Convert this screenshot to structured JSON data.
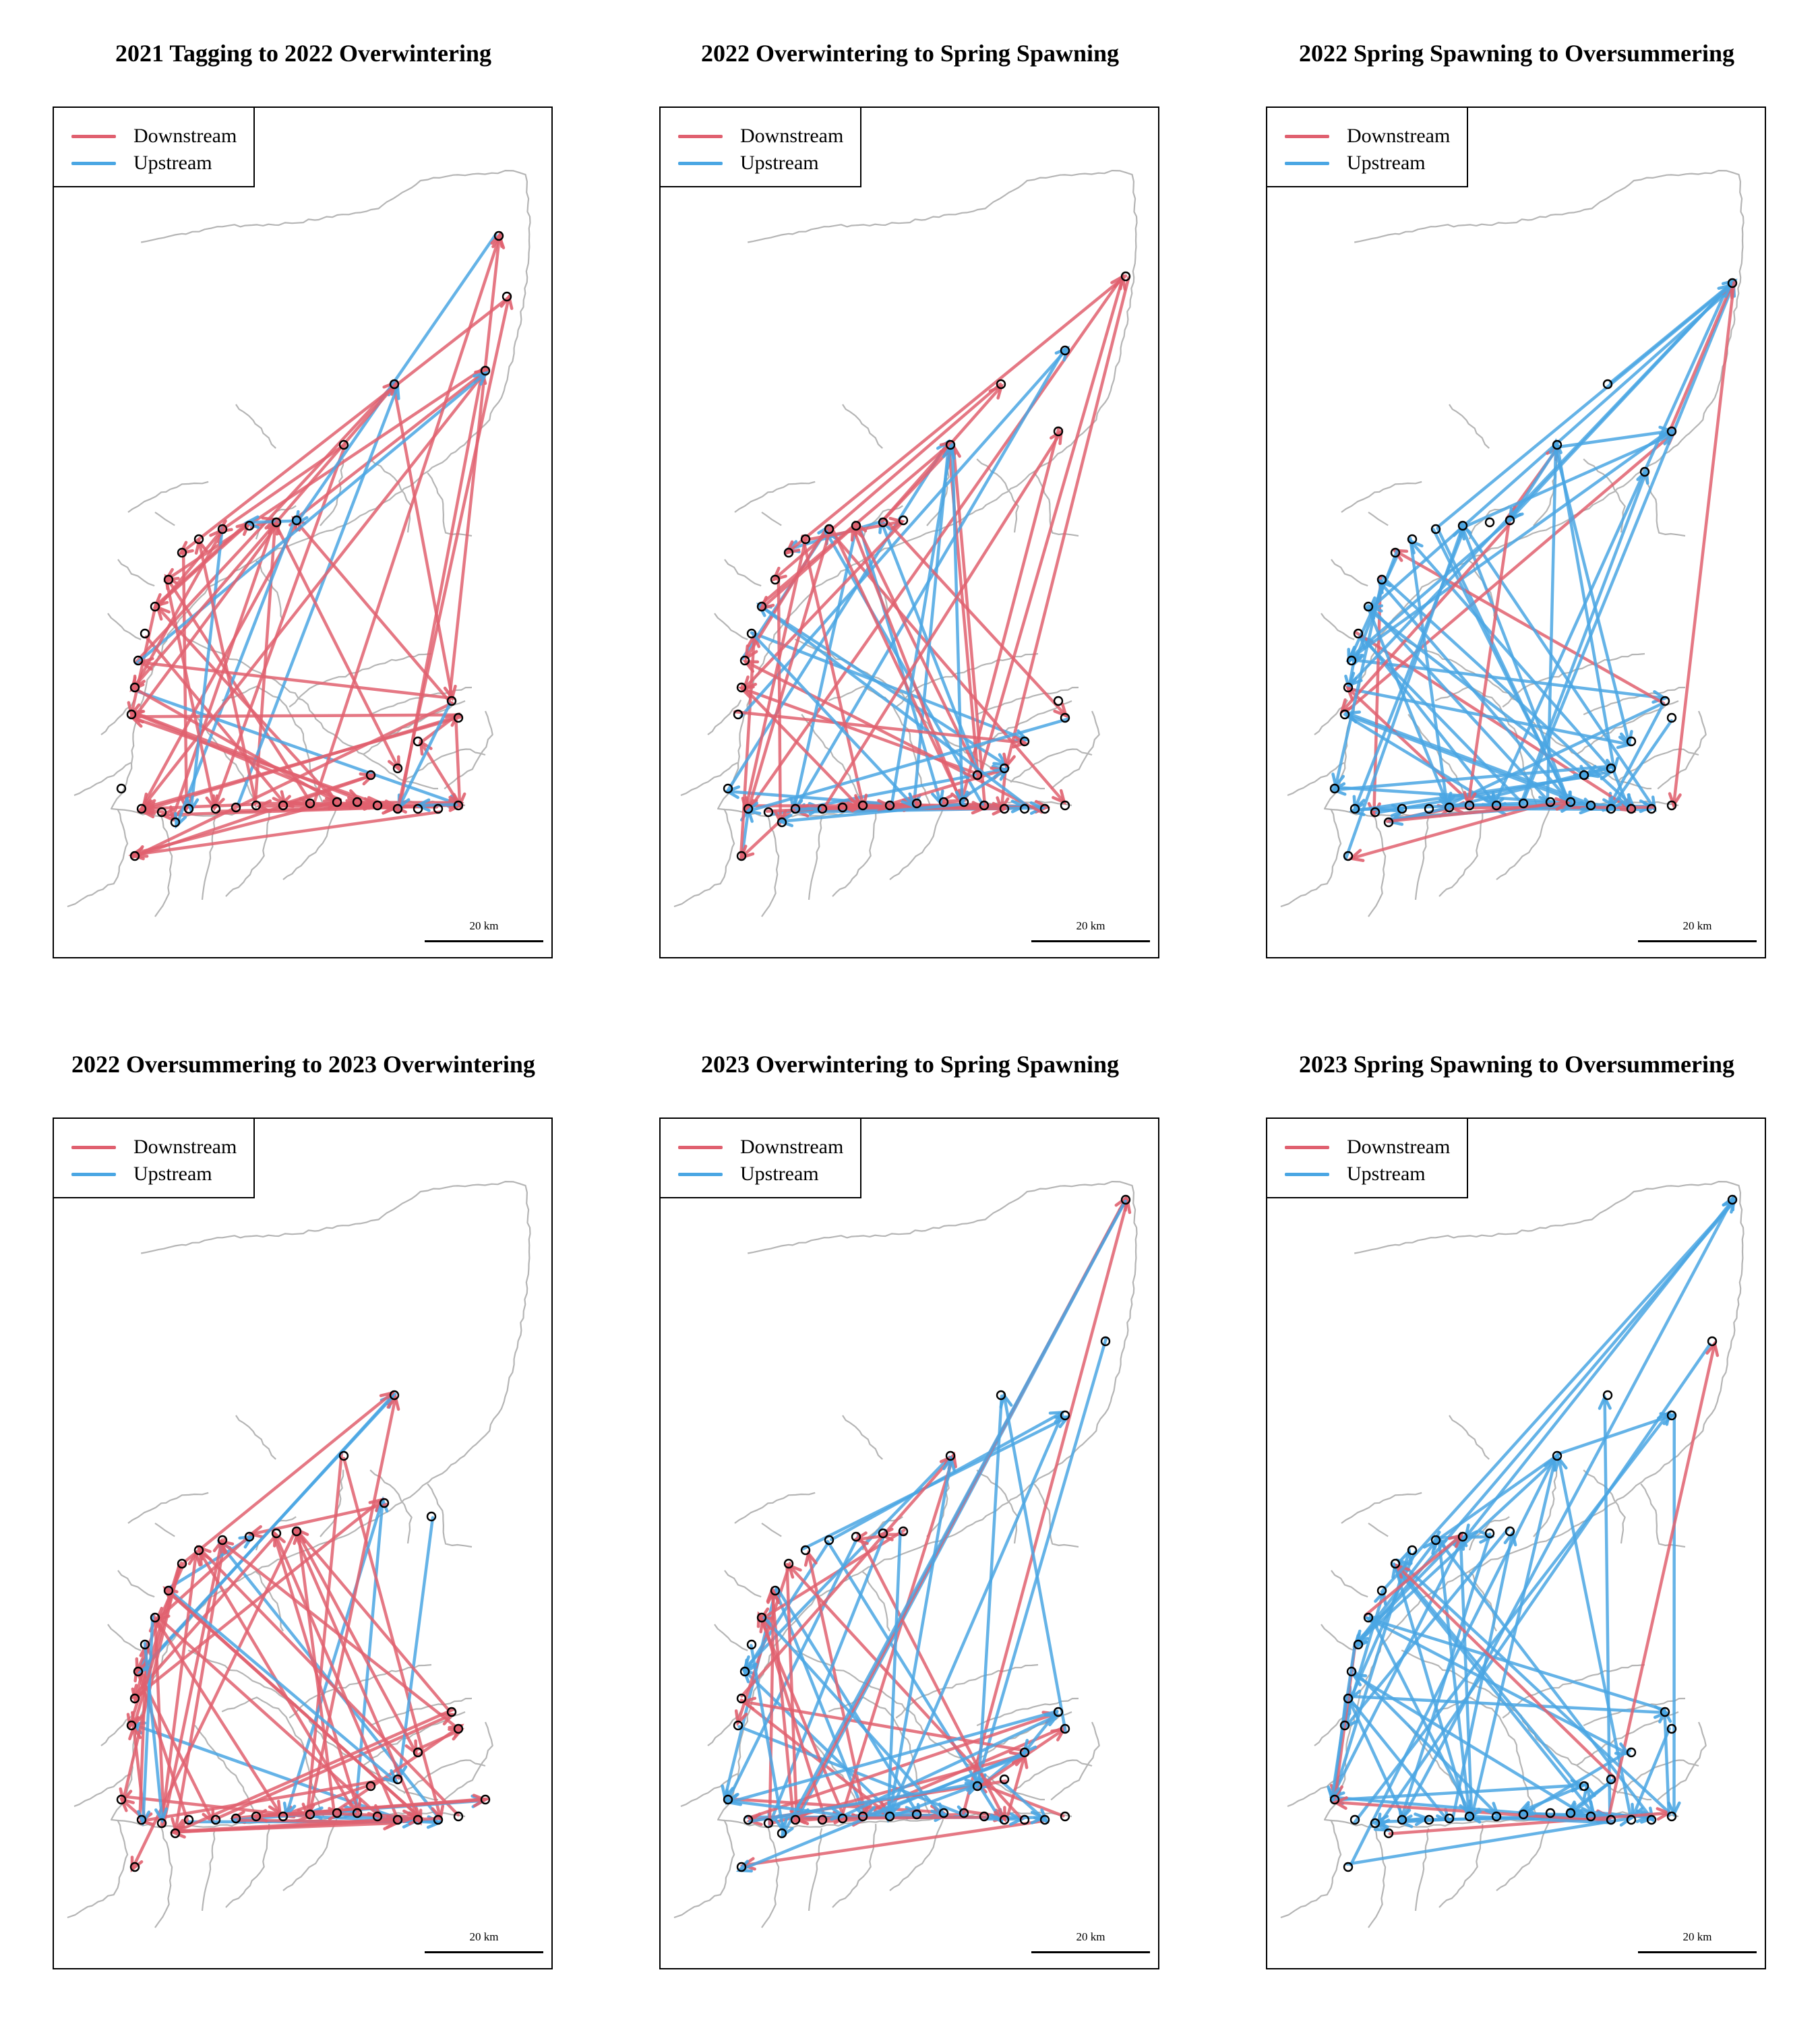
{
  "colors": {
    "downstream": "#e0606f",
    "upstream": "#4aa6e3",
    "river": "#b5b5b5",
    "site": "#000000"
  },
  "legend": {
    "downstream": "Downstream",
    "upstream": "Upstream"
  },
  "scalebar": {
    "label": "20 km"
  },
  "panels": [
    {
      "title": "2021 Tagging to 2022 Overwintering"
    },
    {
      "title": "2022 Overwintering to Spring Spawning"
    },
    {
      "title": "2022 Spring Spawning to Oversummering"
    },
    {
      "title": "2022 Oversummering to 2023 Overwintering"
    },
    {
      "title": "2023 Overwintering to Spring Spawning"
    },
    {
      "title": "2023 Spring Spawning to Oversummering"
    }
  ]
}
